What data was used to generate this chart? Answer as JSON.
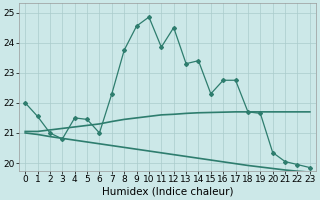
{
  "xlabel": "Humidex (Indice chaleur)",
  "x": [
    0,
    1,
    2,
    3,
    4,
    5,
    6,
    7,
    8,
    9,
    10,
    11,
    12,
    13,
    14,
    15,
    16,
    17,
    18,
    19,
    20,
    21,
    22,
    23
  ],
  "y_main": [
    22.0,
    21.55,
    21.0,
    20.8,
    21.5,
    21.45,
    21.0,
    22.3,
    23.75,
    24.55,
    24.85,
    23.85,
    24.5,
    23.3,
    23.4,
    22.3,
    22.75,
    22.75,
    21.7,
    21.65,
    20.35,
    20.05,
    19.95,
    19.85
  ],
  "y_upper": [
    21.05,
    21.05,
    21.1,
    21.15,
    21.2,
    21.25,
    21.3,
    21.38,
    21.45,
    21.5,
    21.55,
    21.6,
    21.62,
    21.65,
    21.67,
    21.68,
    21.69,
    21.7,
    21.7,
    21.7,
    21.7,
    21.7,
    21.7,
    21.7
  ],
  "y_lower": [
    21.0,
    20.95,
    20.88,
    20.82,
    20.76,
    20.7,
    20.64,
    20.58,
    20.52,
    20.46,
    20.4,
    20.34,
    20.28,
    20.22,
    20.16,
    20.1,
    20.04,
    19.98,
    19.92,
    19.87,
    19.82,
    19.77,
    19.73,
    19.7
  ],
  "line_color": "#2e7d6e",
  "bg_color": "#cce8e8",
  "grid_color": "#aacccc",
  "ylim": [
    19.75,
    25.3
  ],
  "yticks": [
    20,
    21,
    22,
    23,
    24,
    25
  ],
  "xticks": [
    0,
    1,
    2,
    3,
    4,
    5,
    6,
    7,
    8,
    9,
    10,
    11,
    12,
    13,
    14,
    15,
    16,
    17,
    18,
    19,
    20,
    21,
    22,
    23
  ],
  "tick_fontsize": 6.5,
  "xlabel_fontsize": 7.5
}
